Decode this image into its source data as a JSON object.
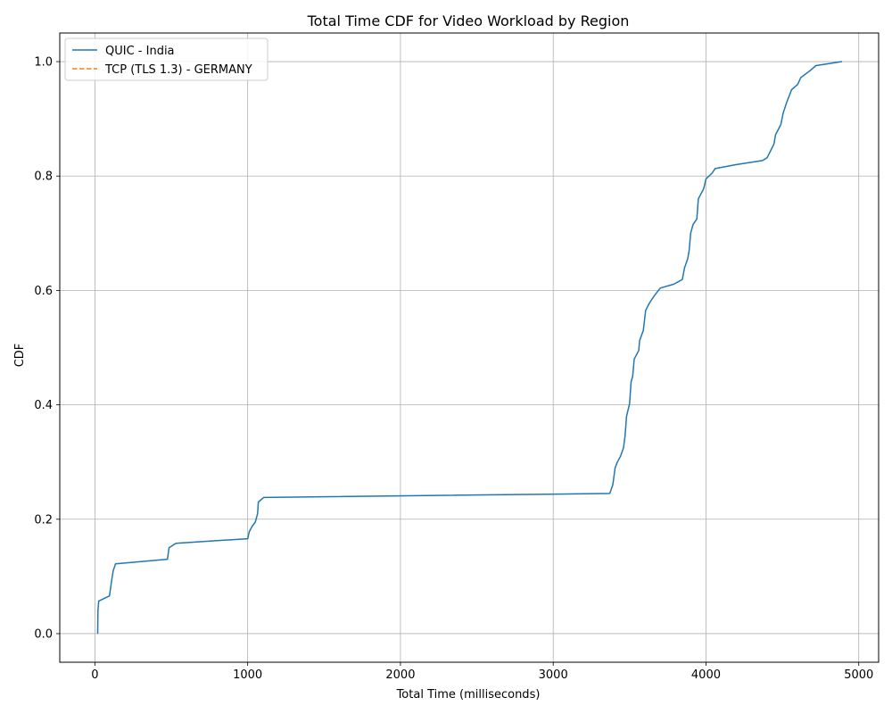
{
  "chart_data": {
    "type": "line",
    "title": "Total Time CDF for Video Workload by Region",
    "xlabel": "Total Time (milliseconds)",
    "ylabel": "CDF",
    "xlim": [
      -230,
      5130
    ],
    "ylim": [
      -0.05,
      1.05
    ],
    "xticks": [
      0,
      1000,
      2000,
      3000,
      4000,
      5000
    ],
    "xtick_labels": [
      "0",
      "1000",
      "2000",
      "3000",
      "4000",
      "5000"
    ],
    "yticks": [
      0.0,
      0.2,
      0.4,
      0.6,
      0.8,
      1.0
    ],
    "ytick_labels": [
      "0.0",
      "0.2",
      "0.4",
      "0.6",
      "0.8",
      "1.0"
    ],
    "grid": true,
    "legend_position": "top-left",
    "series": [
      {
        "name": "QUIC - India",
        "color": "#1f77b4",
        "style": "solid",
        "points": [
          [
            18,
            0.0
          ],
          [
            20,
            0.04
          ],
          [
            25,
            0.057
          ],
          [
            95,
            0.066
          ],
          [
            108,
            0.09
          ],
          [
            120,
            0.11
          ],
          [
            135,
            0.122
          ],
          [
            475,
            0.13
          ],
          [
            485,
            0.15
          ],
          [
            530,
            0.158
          ],
          [
            1000,
            0.166
          ],
          [
            1010,
            0.178
          ],
          [
            1030,
            0.188
          ],
          [
            1050,
            0.195
          ],
          [
            1065,
            0.21
          ],
          [
            1070,
            0.23
          ],
          [
            1105,
            0.238
          ],
          [
            3370,
            0.245
          ],
          [
            3390,
            0.26
          ],
          [
            3405,
            0.29
          ],
          [
            3420,
            0.3
          ],
          [
            3440,
            0.31
          ],
          [
            3460,
            0.325
          ],
          [
            3470,
            0.345
          ],
          [
            3480,
            0.38
          ],
          [
            3500,
            0.402
          ],
          [
            3510,
            0.44
          ],
          [
            3520,
            0.45
          ],
          [
            3530,
            0.48
          ],
          [
            3560,
            0.495
          ],
          [
            3565,
            0.512
          ],
          [
            3590,
            0.53
          ],
          [
            3605,
            0.565
          ],
          [
            3630,
            0.578
          ],
          [
            3660,
            0.59
          ],
          [
            3700,
            0.604
          ],
          [
            3790,
            0.611
          ],
          [
            3845,
            0.619
          ],
          [
            3860,
            0.64
          ],
          [
            3880,
            0.655
          ],
          [
            3890,
            0.67
          ],
          [
            3900,
            0.7
          ],
          [
            3915,
            0.715
          ],
          [
            3940,
            0.725
          ],
          [
            3950,
            0.76
          ],
          [
            3985,
            0.778
          ],
          [
            4000,
            0.795
          ],
          [
            4040,
            0.805
          ],
          [
            4060,
            0.813
          ],
          [
            4200,
            0.82
          ],
          [
            4370,
            0.827
          ],
          [
            4400,
            0.832
          ],
          [
            4430,
            0.848
          ],
          [
            4445,
            0.856
          ],
          [
            4455,
            0.872
          ],
          [
            4490,
            0.89
          ],
          [
            4505,
            0.91
          ],
          [
            4530,
            0.93
          ],
          [
            4545,
            0.94
          ],
          [
            4560,
            0.951
          ],
          [
            4600,
            0.96
          ],
          [
            4620,
            0.972
          ],
          [
            4680,
            0.984
          ],
          [
            4720,
            0.993
          ],
          [
            4890,
            1.0
          ]
        ]
      },
      {
        "name": "TCP (TLS 1.3) - GERMANY",
        "color": "#ff7f0e",
        "style": "dashed",
        "points": []
      }
    ]
  }
}
